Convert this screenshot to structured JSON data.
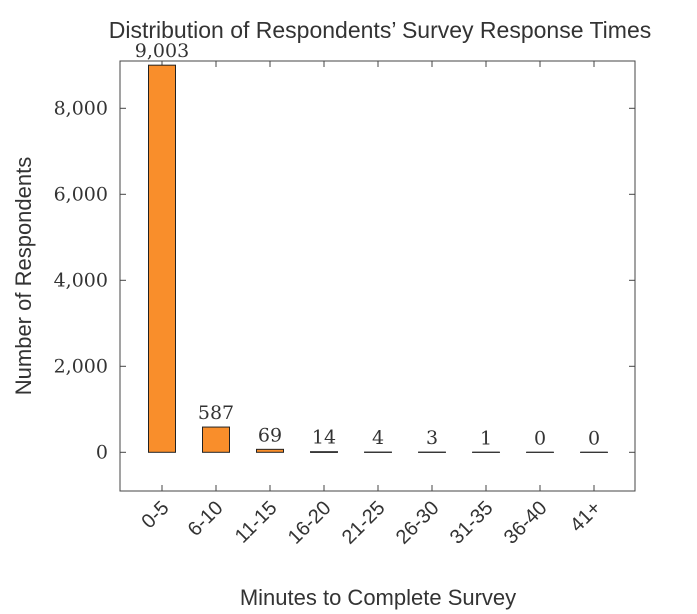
{
  "chart_data": {
    "type": "bar",
    "title": "Distribution of Respondents’ Survey Response Times",
    "xlabel": "Minutes to Complete Survey",
    "ylabel": "Number of Respondents",
    "categories": [
      "0-5",
      "6-10",
      "11-15",
      "16-20",
      "21-25",
      "26-30",
      "31-35",
      "36-40",
      "41+"
    ],
    "values": [
      9003,
      587,
      69,
      14,
      4,
      3,
      1,
      0,
      0
    ],
    "data_labels": [
      "9,003",
      "587",
      "69",
      "14",
      "4",
      "3",
      "1",
      "0",
      "0"
    ],
    "ylim": [
      -900,
      9100
    ],
    "yticks": [
      0,
      2000,
      4000,
      6000,
      8000
    ],
    "ytick_labels": [
      "0",
      "2,000",
      "4,000",
      "6,000",
      "8,000"
    ],
    "grid": false,
    "colors": {
      "bar": "#f98e2b",
      "frame": "#444444"
    }
  }
}
